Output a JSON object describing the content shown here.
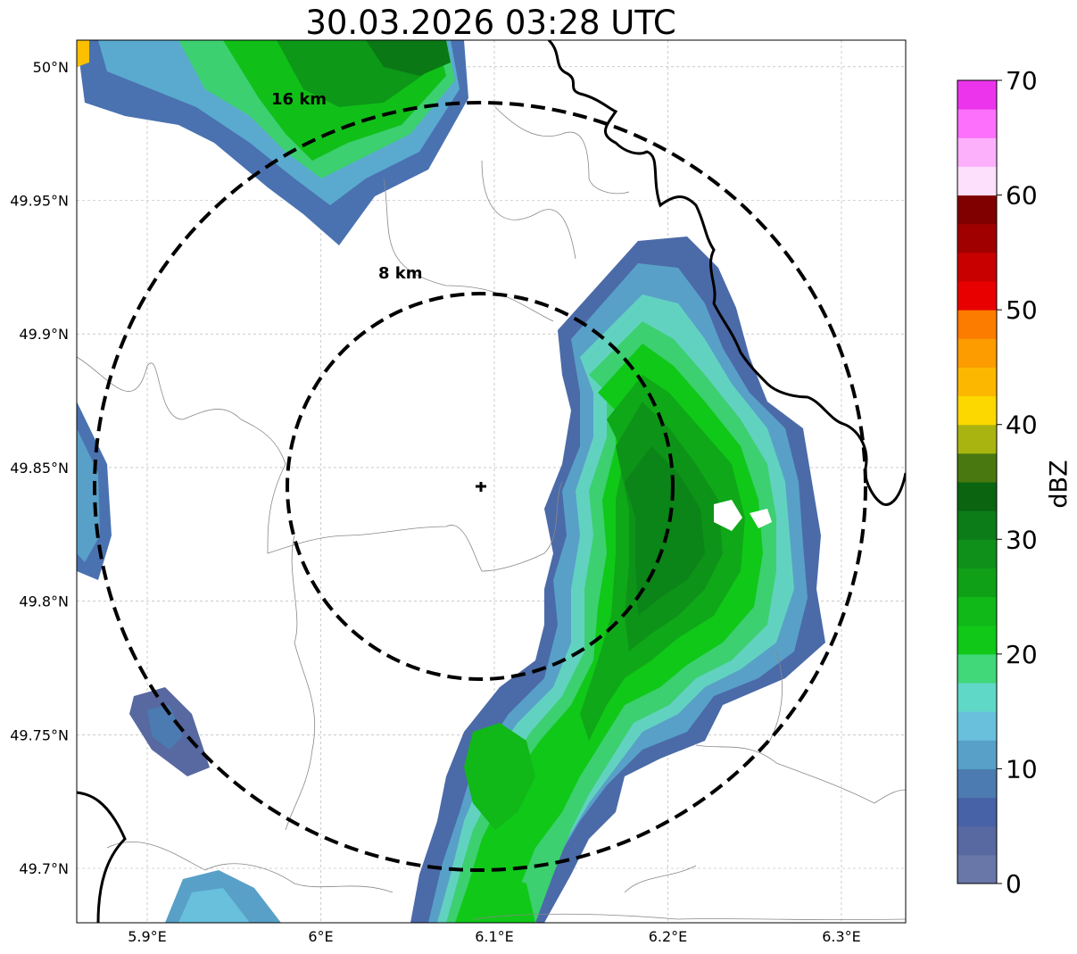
{
  "title": "30.03.2026 03:28 UTC",
  "map": {
    "lon_range": [
      5.86,
      6.34
    ],
    "lat_range": [
      49.68,
      50.01
    ],
    "lon_ticks": [
      {
        "v": 5.9,
        "label": "5.9°E"
      },
      {
        "v": 6.0,
        "label": "6°E"
      },
      {
        "v": 6.1,
        "label": "6.1°E"
      },
      {
        "v": 6.2,
        "label": "6.2°E"
      },
      {
        "v": 6.3,
        "label": "6.3°E"
      }
    ],
    "lat_ticks": [
      {
        "v": 49.7,
        "label": "49.7°N"
      },
      {
        "v": 49.75,
        "label": "49.75°N"
      },
      {
        "v": 49.8,
        "label": "49.8°N"
      },
      {
        "v": 49.85,
        "label": "49.85°N"
      },
      {
        "v": 49.9,
        "label": "49.9°N"
      },
      {
        "v": 49.95,
        "label": "49.95°N"
      },
      {
        "v": 50.0,
        "label": "50°N"
      }
    ],
    "radar_site": {
      "lon": 6.095,
      "lat": 49.843
    },
    "range_rings": [
      {
        "km": 8,
        "label": "8 km"
      },
      {
        "km": 16,
        "label": "16 km"
      }
    ],
    "grid": true
  },
  "colorbar": {
    "unit": "dBZ",
    "min": 0,
    "max": 70,
    "tick_labels": [
      "0",
      "10",
      "20",
      "30",
      "40",
      "50",
      "60",
      "70"
    ],
    "colors": [
      "#6876a8",
      "#5868a0",
      "#4862a8",
      "#4b7bb0",
      "#58a0c8",
      "#68c0dc",
      "#60d8c8",
      "#40d878",
      "#10c818",
      "#10b818",
      "#10a018",
      "#0e901a",
      "#0b7c18",
      "#0a6410",
      "#4a7810",
      "#aab410",
      "#fcd800",
      "#fcb800",
      "#fc9c00",
      "#fc7c00",
      "#e80000",
      "#c80000",
      "#a00000",
      "#800000",
      "#fce0fc",
      "#fcb0fc",
      "#fc70fc",
      "#ec34ec"
    ]
  }
}
